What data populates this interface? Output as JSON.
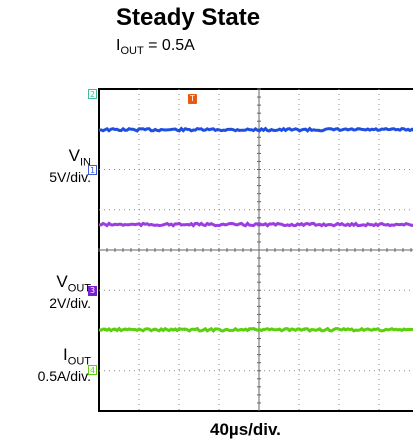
{
  "chart_data": {
    "type": "line",
    "title": "Steady State",
    "subtitle": {
      "prefix": "I",
      "sub": "OUT",
      "suffix": " = 0.5A"
    },
    "xlabel": "40µs/div.",
    "grid": true,
    "series": [
      {
        "name": "VIN",
        "channel": "1",
        "scale_label": "5V/div.",
        "color": "#1f4fe0",
        "x": [
          0,
          2,
          4,
          6,
          8
        ],
        "y": [
          5,
          5,
          5,
          5,
          5
        ]
      },
      {
        "name": "VOUT",
        "channel": "3",
        "scale_label": "2V/div.",
        "color": "#9b3de0",
        "x": [
          0,
          2,
          4,
          6,
          8
        ],
        "y": [
          3.3,
          3.3,
          3.3,
          3.3,
          3.3
        ]
      },
      {
        "name": "IOUT",
        "channel": "4",
        "scale_label": "0.5A/div.",
        "color": "#5ad10c",
        "x": [
          0,
          2,
          4,
          6,
          8
        ],
        "y": [
          0.5,
          0.5,
          0.5,
          0.5,
          0.5
        ]
      }
    ],
    "markers": [
      {
        "label": "2",
        "color": "#3fbfa0"
      },
      {
        "label": "1",
        "color": "#3a5fd8"
      },
      {
        "label": "3",
        "color": "#7a1fd0"
      },
      {
        "label": "4",
        "color": "#5ad10c"
      },
      {
        "label": "T",
        "color": "#e85a10"
      }
    ]
  }
}
